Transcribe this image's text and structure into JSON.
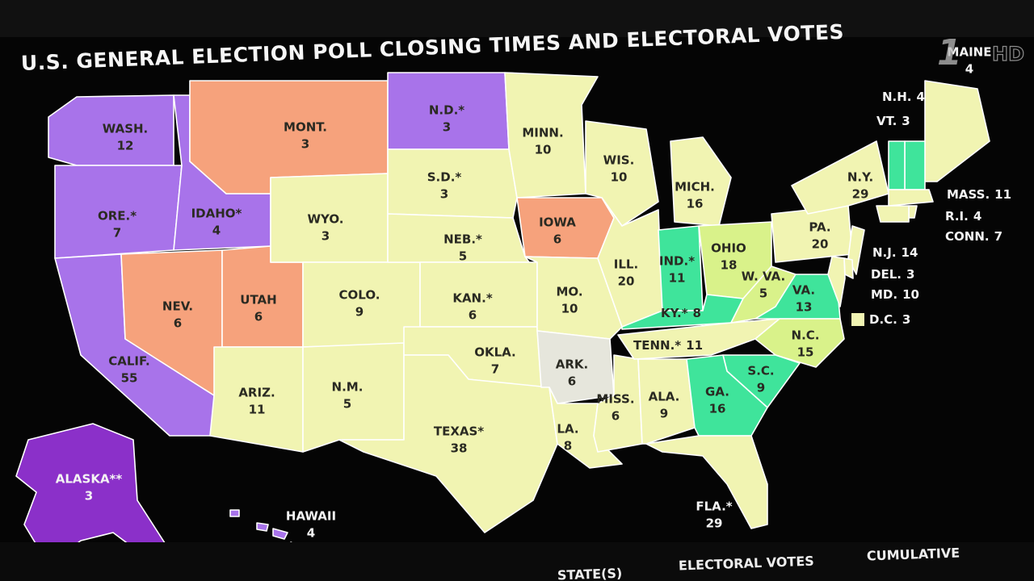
{
  "title": "U.S. GENERAL ELECTION POLL CLOSING TIMES AND ELECTORAL VOTES",
  "logo": {
    "mark": "1",
    "text": "HD"
  },
  "footer": [
    "STATE(S)",
    "ELECTORAL VOTES",
    "CUMULATIVE"
  ],
  "states": [
    {
      "name": "WASH.",
      "votes": 12,
      "color": "#a873ea"
    },
    {
      "name": "ORE.*",
      "votes": 7,
      "color": "#a873ea"
    },
    {
      "name": "CALIF.",
      "votes": 55,
      "color": "#a873ea"
    },
    {
      "name": "NEV.",
      "votes": 6,
      "color": "#f6a27c"
    },
    {
      "name": "IDAHO*",
      "votes": 4,
      "color": "#a873ea"
    },
    {
      "name": "MONT.",
      "votes": 3,
      "color": "#f6a27c"
    },
    {
      "name": "UTAH",
      "votes": 6,
      "color": "#f6a27c"
    },
    {
      "name": "WYO.",
      "votes": 3,
      "color": "#f1f4b2"
    },
    {
      "name": "ARIZ.",
      "votes": 11,
      "color": "#f1f4b2"
    },
    {
      "name": "COLO.",
      "votes": 9,
      "color": "#f1f4b2"
    },
    {
      "name": "N.M.",
      "votes": 5,
      "color": "#f1f4b2"
    },
    {
      "name": "N.D.*",
      "votes": 3,
      "color": "#a873ea"
    },
    {
      "name": "S.D.*",
      "votes": 3,
      "color": "#f1f4b2"
    },
    {
      "name": "NEB.*",
      "votes": 5,
      "color": "#f1f4b2"
    },
    {
      "name": "KAN.*",
      "votes": 6,
      "color": "#f1f4b2"
    },
    {
      "name": "OKLA.",
      "votes": 7,
      "color": "#f1f4b2"
    },
    {
      "name": "TEXAS*",
      "votes": 38,
      "color": "#f1f4b2"
    },
    {
      "name": "MINN.",
      "votes": 10,
      "color": "#f1f4b2"
    },
    {
      "name": "IOWA",
      "votes": 6,
      "color": "#f6a27c"
    },
    {
      "name": "MO.",
      "votes": 10,
      "color": "#f1f4b2"
    },
    {
      "name": "ARK.",
      "votes": 6,
      "color": "#e6e6dc"
    },
    {
      "name": "LA.",
      "votes": 8,
      "color": "#f1f4b2"
    },
    {
      "name": "MISS.",
      "votes": 6,
      "color": "#f1f4b2"
    },
    {
      "name": "ALA.",
      "votes": 9,
      "color": "#f1f4b2"
    },
    {
      "name": "WIS.",
      "votes": 10,
      "color": "#f1f4b2"
    },
    {
      "name": "ILL.",
      "votes": 20,
      "color": "#f1f4b2"
    },
    {
      "name": "MICH.",
      "votes": 16,
      "color": "#f1f4b2"
    },
    {
      "name": "IND.*",
      "votes": 11,
      "color": "#3fe49b"
    },
    {
      "name": "OHIO",
      "votes": 18,
      "color": "#d9f28a"
    },
    {
      "name": "KY.*",
      "votes": 8,
      "color": "#3fe49b"
    },
    {
      "name": "TENN.*",
      "votes": 11,
      "color": "#f1f4b2"
    },
    {
      "name": "W. VA.",
      "votes": 5,
      "color": "#d9f28a"
    },
    {
      "name": "VA.",
      "votes": 13,
      "color": "#3fe49b"
    },
    {
      "name": "N.C.",
      "votes": 15,
      "color": "#d9f28a"
    },
    {
      "name": "S.C.",
      "votes": 9,
      "color": "#3fe49b"
    },
    {
      "name": "GA.",
      "votes": 16,
      "color": "#3fe49b"
    },
    {
      "name": "FLA.*",
      "votes": 29,
      "color": "#f1f4b2"
    },
    {
      "name": "PA.",
      "votes": 20,
      "color": "#f1f4b2"
    },
    {
      "name": "N.Y.",
      "votes": 29,
      "color": "#f1f4b2"
    },
    {
      "name": "MAINE",
      "votes": 4,
      "color": "#f1f4b2"
    },
    {
      "name": "N.H.",
      "votes": 4,
      "color": "#3fe49b"
    },
    {
      "name": "VT.",
      "votes": 3,
      "color": "#3fe49b"
    },
    {
      "name": "MASS.",
      "votes": 11,
      "color": "#f1f4b2"
    },
    {
      "name": "R.I.",
      "votes": 4,
      "color": "#f1f4b2"
    },
    {
      "name": "CONN.",
      "votes": 7,
      "color": "#f1f4b2"
    },
    {
      "name": "N.J.",
      "votes": 14,
      "color": "#f1f4b2"
    },
    {
      "name": "DEL.",
      "votes": 3,
      "color": "#f1f4b2"
    },
    {
      "name": "MD.",
      "votes": 10,
      "color": "#f1f4b2"
    },
    {
      "name": "D.C.",
      "votes": 3,
      "color": "#f1f4b2"
    },
    {
      "name": "ALASKA**",
      "votes": 3,
      "color": "#8b30c9"
    },
    {
      "name": "HAWAII",
      "votes": 4,
      "color": "#a873ea"
    }
  ]
}
